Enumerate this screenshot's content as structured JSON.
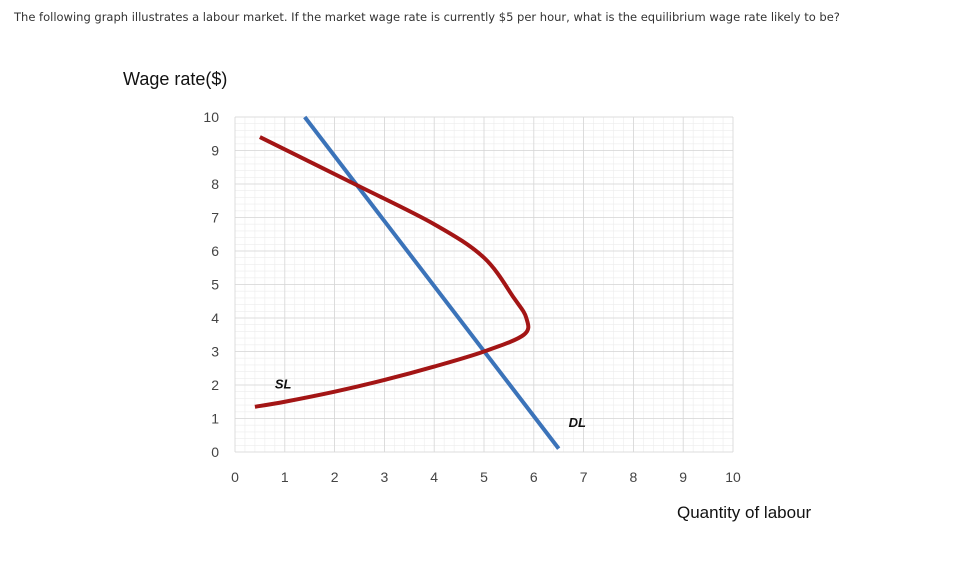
{
  "question": "The following graph illustrates a labour market. If the market wage rate is currently $5 per hour, what is the equilibrium wage rate likely to be?",
  "chart_data": {
    "type": "line",
    "title": "",
    "xlabel": "Quantity of labour",
    "ylabel": "Wage rate($)",
    "xlim": [
      0,
      10
    ],
    "ylim": [
      0,
      10
    ],
    "x_ticks": [
      "0",
      "1",
      "2",
      "3",
      "4",
      "5",
      "6",
      "7",
      "8",
      "9",
      "10"
    ],
    "y_ticks": [
      "0",
      "1",
      "2",
      "3",
      "4",
      "5",
      "6",
      "7",
      "8",
      "9",
      "10"
    ],
    "grid": true,
    "series": [
      {
        "name": "DL",
        "color": "#3b73b9",
        "points": [
          [
            1.4,
            10
          ],
          [
            6.5,
            0.1
          ]
        ]
      },
      {
        "name": "SL",
        "color": "#a31515",
        "points": [
          [
            0.5,
            9.4
          ],
          [
            2.4,
            8.0
          ],
          [
            4.0,
            6.8
          ],
          [
            5.0,
            5.8
          ],
          [
            5.6,
            4.6
          ],
          [
            5.85,
            4.0
          ],
          [
            5.8,
            3.5
          ],
          [
            5.0,
            3.0
          ],
          [
            4.0,
            2.55
          ],
          [
            3.0,
            2.15
          ],
          [
            2.0,
            1.8
          ],
          [
            1.0,
            1.5
          ],
          [
            0.4,
            1.35
          ]
        ]
      }
    ],
    "annotations": [
      {
        "text": "SL",
        "x": 0.8,
        "y": 1.9
      },
      {
        "text": "DL",
        "x": 6.7,
        "y": 0.75
      }
    ]
  }
}
